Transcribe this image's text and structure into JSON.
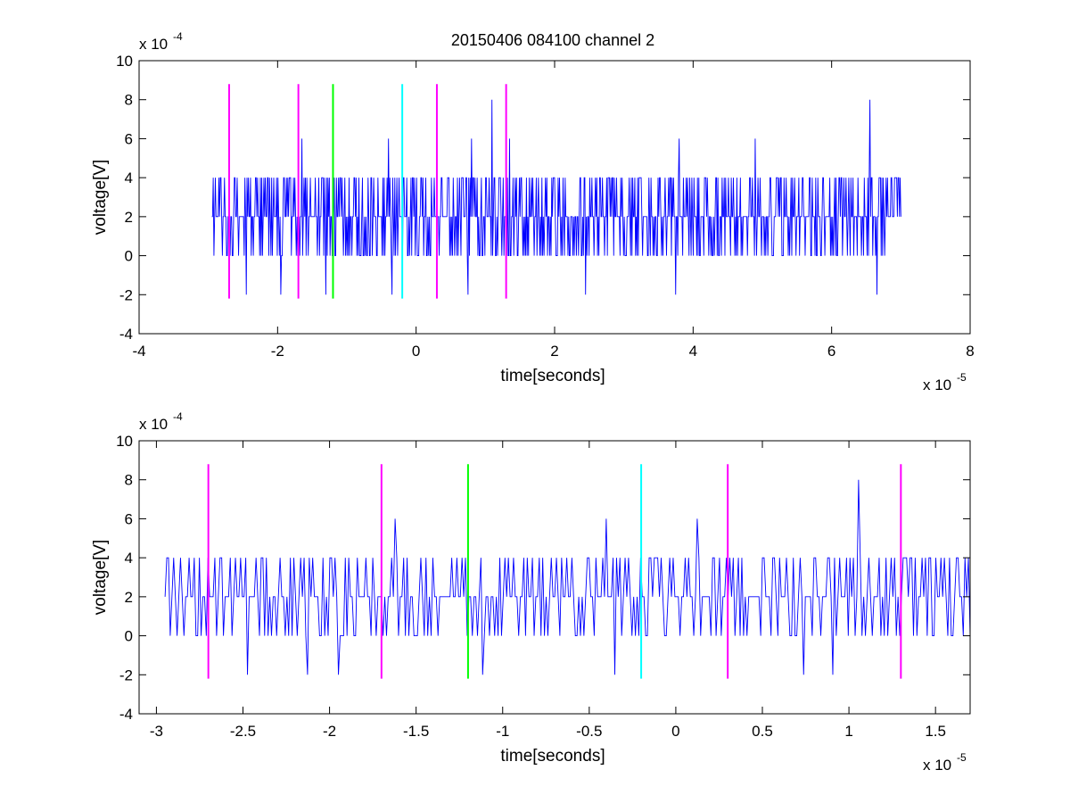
{
  "figure": {
    "title": "20150406 084100 channel 2",
    "background": "#ffffff"
  },
  "chart_data": [
    {
      "type": "line",
      "title": "20150406 084100 channel 2",
      "xlabel": "time[seconds]",
      "ylabel": "voltage[V]",
      "x_exponent_label": "x 10",
      "x_exponent": "-5",
      "y_exponent_label": "x 10",
      "y_exponent": "-4",
      "xlim": [
        -4,
        8
      ],
      "ylim": [
        -4,
        10
      ],
      "xticks": [
        -4,
        -2,
        0,
        2,
        4,
        6,
        8
      ],
      "xtick_labels": [
        "-4",
        "-2",
        "0",
        "2",
        "4",
        "6",
        "8"
      ],
      "yticks": [
        -4,
        -2,
        0,
        2,
        4,
        6,
        8,
        10
      ],
      "ytick_labels": [
        "-4",
        "-2",
        "0",
        "2",
        "4",
        "6",
        "8",
        "10"
      ],
      "grid": false,
      "signal": {
        "color": "#0000ff",
        "x_start": -2.95,
        "x_end": 7.0,
        "levels": [
          -2,
          0,
          2,
          4,
          6,
          8
        ],
        "baseline": 2,
        "spikes": [
          {
            "x": -1.65,
            "y": 6
          },
          {
            "x": -0.4,
            "y": 6
          },
          {
            "x": 0.8,
            "y": 6
          },
          {
            "x": 1.1,
            "y": 8
          },
          {
            "x": 1.35,
            "y": 6
          },
          {
            "x": 3.8,
            "y": 6
          },
          {
            "x": 4.9,
            "y": 6
          },
          {
            "x": 6.55,
            "y": 8
          },
          {
            "x": -2.45,
            "y": -2
          },
          {
            "x": -1.95,
            "y": -2
          },
          {
            "x": -1.3,
            "y": -2
          },
          {
            "x": -0.35,
            "y": -2
          },
          {
            "x": 0.75,
            "y": -2
          },
          {
            "x": 2.45,
            "y": -2
          },
          {
            "x": 3.75,
            "y": -2
          },
          {
            "x": 6.65,
            "y": -2
          }
        ]
      },
      "markers": [
        {
          "x": -2.7,
          "y_from": -2.2,
          "y_to": 8.8,
          "color": "#ff00ff"
        },
        {
          "x": -1.7,
          "y_from": -2.2,
          "y_to": 8.8,
          "color": "#ff00ff"
        },
        {
          "x": -1.2,
          "y_from": -2.2,
          "y_to": 8.8,
          "color": "#00ff00"
        },
        {
          "x": -0.2,
          "y_from": -2.2,
          "y_to": 8.8,
          "color": "#00ffff"
        },
        {
          "x": 0.3,
          "y_from": -2.2,
          "y_to": 8.8,
          "color": "#ff00ff"
        },
        {
          "x": 1.3,
          "y_from": -2.2,
          "y_to": 8.8,
          "color": "#ff00ff"
        }
      ]
    },
    {
      "type": "line",
      "title": "",
      "xlabel": "time[seconds]",
      "ylabel": "voltage[V]",
      "x_exponent_label": "x 10",
      "x_exponent": "-5",
      "y_exponent_label": "x 10",
      "y_exponent": "-4",
      "xlim": [
        -3.1,
        1.7
      ],
      "ylim": [
        -4,
        10
      ],
      "xticks": [
        -3,
        -2.5,
        -2,
        -1.5,
        -1,
        -0.5,
        0,
        0.5,
        1,
        1.5
      ],
      "xtick_labels": [
        "-3",
        "-2.5",
        "-2",
        "-1.5",
        "-1",
        "-0.5",
        "0",
        "0.5",
        "1",
        "1.5"
      ],
      "yticks": [
        -4,
        -2,
        0,
        2,
        4,
        6,
        8,
        10
      ],
      "ytick_labels": [
        "-4",
        "-2",
        "0",
        "2",
        "4",
        "6",
        "8",
        "10"
      ],
      "grid": false,
      "signal": {
        "color": "#0000ff",
        "x_start": -2.95,
        "x_end": 1.7,
        "levels": [
          -2,
          0,
          2,
          4,
          6,
          8
        ],
        "baseline": 2,
        "spikes": [
          {
            "x": -1.62,
            "y": 6
          },
          {
            "x": -0.4,
            "y": 6
          },
          {
            "x": 0.12,
            "y": 6
          },
          {
            "x": 1.06,
            "y": 8
          },
          {
            "x": -2.47,
            "y": -2
          },
          {
            "x": -2.13,
            "y": -2
          },
          {
            "x": -1.95,
            "y": -2
          },
          {
            "x": -1.12,
            "y": -2
          },
          {
            "x": -0.35,
            "y": -2
          },
          {
            "x": 0.74,
            "y": -2
          },
          {
            "x": 0.91,
            "y": -2
          }
        ]
      },
      "markers": [
        {
          "x": -2.7,
          "y_from": -2.2,
          "y_to": 8.8,
          "color": "#ff00ff"
        },
        {
          "x": -1.7,
          "y_from": -2.2,
          "y_to": 8.8,
          "color": "#ff00ff"
        },
        {
          "x": -1.2,
          "y_from": -2.2,
          "y_to": 8.8,
          "color": "#00ff00"
        },
        {
          "x": -0.2,
          "y_from": -2.2,
          "y_to": 8.8,
          "color": "#00ffff"
        },
        {
          "x": 0.3,
          "y_from": -2.2,
          "y_to": 8.8,
          "color": "#ff00ff"
        },
        {
          "x": 1.3,
          "y_from": -2.2,
          "y_to": 8.8,
          "color": "#ff00ff"
        }
      ]
    }
  ]
}
